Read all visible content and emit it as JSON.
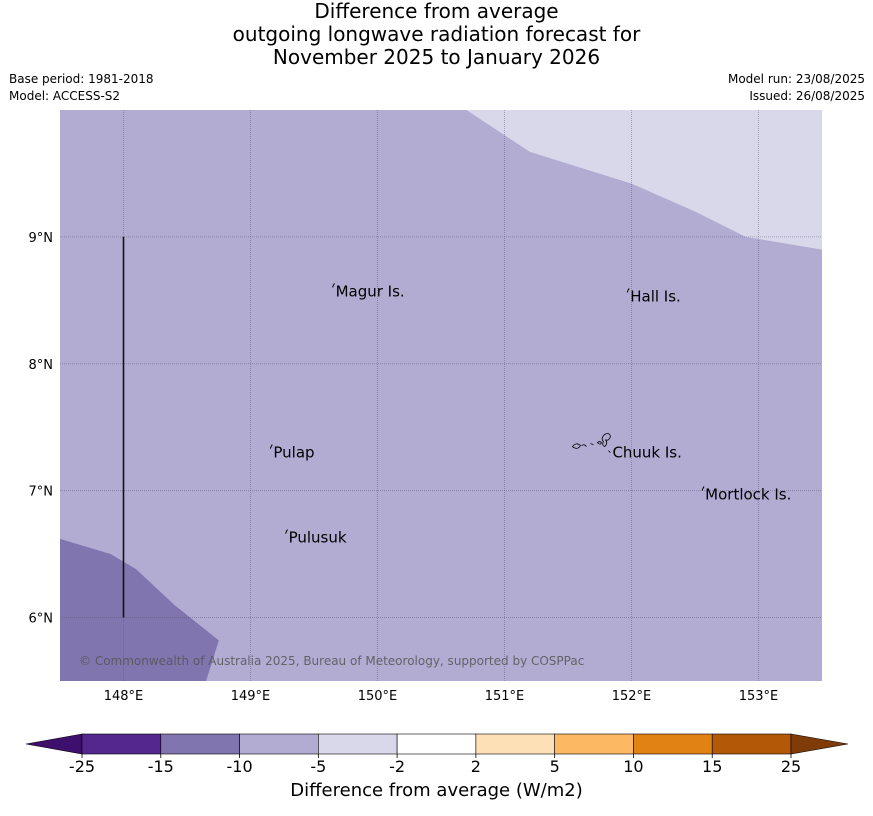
{
  "title": {
    "line1": "Difference from average",
    "line2": "outgoing longwave radiation forecast for",
    "line3": "November 2025 to January 2026"
  },
  "meta": {
    "base_period": "Base period: 1981-2018",
    "model": "Model: ACCESS-S2",
    "model_run": "Model run: 23/08/2025",
    "issued": "Issued: 26/08/2025"
  },
  "map": {
    "lon_range": [
      147.5,
      153.5
    ],
    "lat_range": [
      5.5,
      10.0
    ],
    "lon_ticks": [
      {
        "value": 148,
        "label": "148°E"
      },
      {
        "value": 149,
        "label": "149°E"
      },
      {
        "value": 150,
        "label": "150°E"
      },
      {
        "value": 151,
        "label": "151°E"
      },
      {
        "value": 152,
        "label": "152°E"
      },
      {
        "value": 153,
        "label": "153°E"
      }
    ],
    "lat_ticks": [
      {
        "value": 9,
        "label": "9°N"
      },
      {
        "value": 8,
        "label": "8°N"
      },
      {
        "value": 7,
        "label": "7°N"
      },
      {
        "value": 6,
        "label": "6°N"
      }
    ],
    "background_category": "-10 to -5",
    "zones": [
      {
        "category": "-5 to -2",
        "color": "#d8d8ea",
        "polygon": [
          [
            150.7,
            10.0
          ],
          [
            151.2,
            9.67
          ],
          [
            152.0,
            9.42
          ],
          [
            152.5,
            9.2
          ],
          [
            152.9,
            9.0
          ],
          [
            153.5,
            8.9
          ],
          [
            153.5,
            10.0
          ]
        ]
      },
      {
        "category": "-15 to -10",
        "color": "#8175b0",
        "polygon": [
          [
            147.5,
            6.62
          ],
          [
            147.9,
            6.5
          ],
          [
            148.1,
            6.38
          ],
          [
            148.4,
            6.1
          ],
          [
            148.75,
            5.82
          ],
          [
            148.65,
            5.5
          ],
          [
            147.5,
            5.5
          ]
        ]
      }
    ],
    "boundary_line": {
      "lon": 148.0,
      "lat_from": 6.0,
      "lat_to": 9.0
    },
    "places": [
      {
        "name": "Magur Is.",
        "lon": 149.67,
        "lat": 8.57
      },
      {
        "name": "Hall Is.",
        "lon": 151.99,
        "lat": 8.53
      },
      {
        "name": "Pulap",
        "lon": 149.18,
        "lat": 7.3
      },
      {
        "name": "Chuuk Is.",
        "lon": 151.85,
        "lat": 7.3
      },
      {
        "name": "Mortlock Is.",
        "lon": 152.58,
        "lat": 6.97
      },
      {
        "name": "Pulusuk",
        "lon": 149.3,
        "lat": 6.63
      }
    ],
    "credit": "© Commonwealth of Australia 2025, Bureau of Meteorology, supported by COSPPac"
  },
  "colorbar": {
    "title": "Difference from average (W/m2)",
    "ticks": [
      "-25",
      "-15",
      "-10",
      "-5",
      "-2",
      "2",
      "5",
      "10",
      "15",
      "25"
    ],
    "under_color": "#3f0f6d",
    "over_color": "#7f3b08",
    "bins": [
      {
        "range": "-25 to -15",
        "color": "#54278f"
      },
      {
        "range": "-15 to -10",
        "color": "#8175b0"
      },
      {
        "range": "-10 to -5",
        "color": "#b2abd2"
      },
      {
        "range": "-5 to -2",
        "color": "#d8d8ea"
      },
      {
        "range": "-2 to 2",
        "color": "#ffffff"
      },
      {
        "range": "2 to 5",
        "color": "#fee0b6"
      },
      {
        "range": "5 to 10",
        "color": "#fdb863"
      },
      {
        "range": "10 to 15",
        "color": "#e08214"
      },
      {
        "range": "15 to 25",
        "color": "#b35806"
      }
    ]
  }
}
